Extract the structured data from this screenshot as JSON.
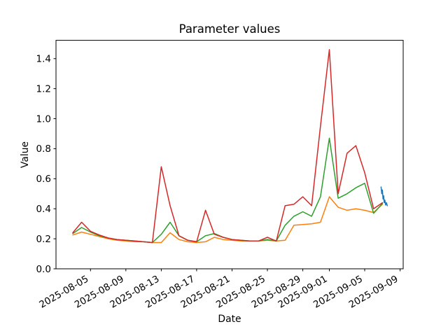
{
  "chart_data": {
    "type": "line",
    "title": "Parameter values",
    "xlabel": "Date",
    "ylabel": "Value",
    "grid": false,
    "legend": "none",
    "ylim": [
      0,
      1.522
    ],
    "xlim_days": [
      0.1,
      39.35
    ],
    "y_ticks": [
      0.0,
      0.2,
      0.4,
      0.6,
      0.8,
      1.0,
      1.2,
      1.4
    ],
    "x_ticks": [
      "2025-08-05",
      "2025-08-09",
      "2025-08-13",
      "2025-08-17",
      "2025-08-21",
      "2025-08-25",
      "2025-08-29",
      "2025-09-01",
      "2025-09-05",
      "2025-09-09"
    ],
    "x_dates": [
      "2025-08-03",
      "2025-08-04",
      "2025-08-05",
      "2025-08-06",
      "2025-08-07",
      "2025-08-08",
      "2025-08-09",
      "2025-08-10",
      "2025-08-11",
      "2025-08-12",
      "2025-08-13",
      "2025-08-14",
      "2025-08-15",
      "2025-08-16",
      "2025-08-17",
      "2025-08-18",
      "2025-08-19",
      "2025-08-20",
      "2025-08-21",
      "2025-08-22",
      "2025-08-23",
      "2025-08-24",
      "2025-08-25",
      "2025-08-26",
      "2025-08-27",
      "2025-08-28",
      "2025-08-29",
      "2025-08-30",
      "2025-08-31",
      "2025-09-01",
      "2025-09-02",
      "2025-09-03",
      "2025-09-04",
      "2025-09-05",
      "2025-09-06",
      "2025-09-07"
    ],
    "series": [
      {
        "name": "series-orange",
        "color": "#ff7f0e",
        "values": [
          0.225,
          0.245,
          0.23,
          0.215,
          0.2,
          0.19,
          0.185,
          0.18,
          0.18,
          0.175,
          0.175,
          0.24,
          0.195,
          0.18,
          0.175,
          0.18,
          0.21,
          0.195,
          0.19,
          0.185,
          0.185,
          0.185,
          0.19,
          0.185,
          0.19,
          0.29,
          0.295,
          0.3,
          0.31,
          0.48,
          0.41,
          0.39,
          0.4,
          0.39,
          0.375,
          0.43
        ]
      },
      {
        "name": "series-green",
        "color": "#2ca02c",
        "values": [
          0.235,
          0.275,
          0.245,
          0.22,
          0.205,
          0.195,
          0.19,
          0.185,
          0.18,
          0.175,
          0.23,
          0.31,
          0.22,
          0.19,
          0.18,
          0.22,
          0.235,
          0.21,
          0.195,
          0.19,
          0.185,
          0.185,
          0.195,
          0.185,
          0.29,
          0.35,
          0.38,
          0.35,
          0.48,
          0.87,
          0.47,
          0.5,
          0.54,
          0.57,
          0.37,
          0.435
        ]
      },
      {
        "name": "series-red",
        "color": "#d62728",
        "values": [
          0.24,
          0.31,
          0.25,
          0.225,
          0.205,
          0.195,
          0.19,
          0.185,
          0.18,
          0.175,
          0.68,
          0.42,
          0.22,
          0.19,
          0.18,
          0.39,
          0.23,
          0.21,
          0.195,
          0.19,
          0.185,
          0.185,
          0.21,
          0.185,
          0.42,
          0.43,
          0.48,
          0.42,
          0.95,
          1.46,
          0.5,
          0.77,
          0.82,
          0.64,
          0.4,
          0.44
        ]
      }
    ],
    "blue_segment": {
      "name": "series-blue-recent",
      "color": "#1f77b4",
      "day_offsets": [
        36.85,
        36.93,
        37.0,
        37.07,
        37.14,
        37.2,
        37.28,
        37.36,
        37.45,
        37.55
      ],
      "values": [
        0.545,
        0.5,
        0.525,
        0.465,
        0.487,
        0.44,
        0.458,
        0.425,
        0.44,
        0.42
      ]
    },
    "axis_color": "#000000",
    "background_color": "#ffffff"
  }
}
